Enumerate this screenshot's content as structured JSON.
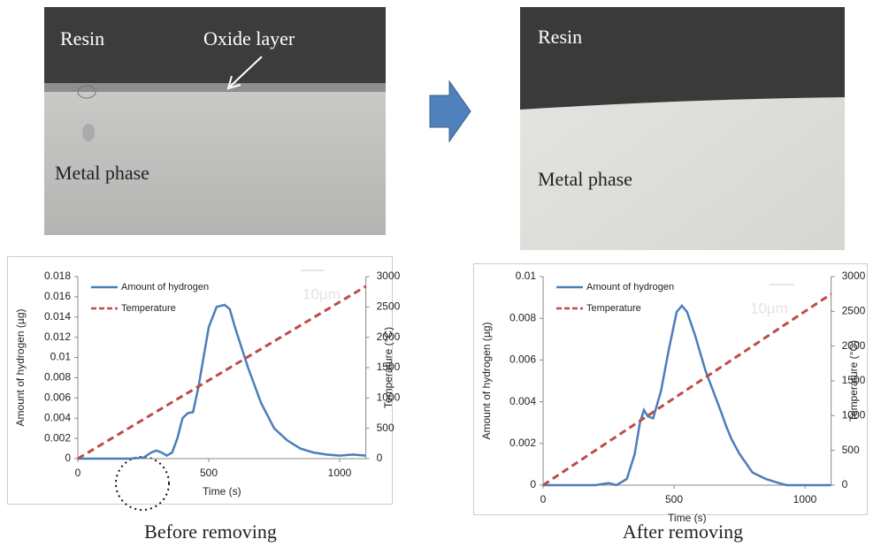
{
  "images": [
    {
      "labels": [
        "Resin",
        "Oxide layer",
        "Metal phase"
      ],
      "scale_bar": "10µm"
    },
    {
      "labels": [
        "Resin",
        "Metal phase"
      ],
      "scale_bar": "10µm"
    }
  ],
  "captions": [
    "Before removing",
    "After removing"
  ],
  "chart_data": [
    {
      "type": "line",
      "x_label": "Time (s)",
      "y_label": "Amount of hydrogen (µg)",
      "y2_label": "Temperature (°C)",
      "xlim": [
        0,
        1100
      ],
      "xticks": [
        0,
        500,
        1000
      ],
      "ylim": [
        0,
        0.018
      ],
      "yticks": [
        0,
        0.002,
        0.004,
        0.006,
        0.008,
        0.01,
        0.012,
        0.014,
        0.016,
        0.018
      ],
      "y2lim": [
        0,
        3000
      ],
      "y2ticks": [
        0,
        500,
        1000,
        1500,
        2000,
        2500,
        3000
      ],
      "legend": "top-left",
      "series": [
        {
          "name": "Amount of hydrogen",
          "color": "#4a7ebb",
          "style": "solid",
          "x": [
            0,
            200,
            250,
            280,
            300,
            320,
            340,
            360,
            380,
            400,
            420,
            440,
            460,
            480,
            500,
            530,
            560,
            580,
            600,
            650,
            700,
            750,
            800,
            850,
            900,
            950,
            1000,
            1050,
            1100
          ],
          "values": [
            0,
            0,
            0.0001,
            0.0006,
            0.0008,
            0.0006,
            0.0003,
            0.0006,
            0.002,
            0.004,
            0.0045,
            0.0046,
            0.007,
            0.01,
            0.013,
            0.015,
            0.0152,
            0.0148,
            0.013,
            0.009,
            0.0055,
            0.003,
            0.0018,
            0.001,
            0.0006,
            0.0004,
            0.0003,
            0.0004,
            0.0003
          ]
        },
        {
          "name": "Temperature",
          "color": "#be4b48",
          "style": "dashed",
          "axis": "y2",
          "x": [
            0,
            1100
          ],
          "values": [
            0,
            2840
          ]
        }
      ]
    },
    {
      "type": "line",
      "x_label": "Time (s)",
      "y_label": "Amount of hydrogen (µg)",
      "y2_label": "Temperature (°C)",
      "xlim": [
        0,
        1100
      ],
      "xticks": [
        0,
        500,
        1000
      ],
      "ylim": [
        0,
        0.01
      ],
      "yticks": [
        0,
        0.002,
        0.004,
        0.006,
        0.008,
        0.01
      ],
      "y2lim": [
        0,
        3000
      ],
      "y2ticks": [
        0,
        500,
        1000,
        1500,
        2000,
        2500,
        3000
      ],
      "legend": "top-left",
      "series": [
        {
          "name": "Amount of hydrogen",
          "color": "#4a7ebb",
          "style": "solid",
          "x": [
            0,
            200,
            250,
            280,
            320,
            350,
            370,
            385,
            400,
            420,
            450,
            480,
            510,
            530,
            550,
            580,
            620,
            650,
            680,
            700,
            720,
            750,
            800,
            850,
            900,
            930,
            1000,
            1100
          ],
          "values": [
            0,
            0,
            0.0001,
            0,
            0.0003,
            0.0015,
            0.003,
            0.0036,
            0.0033,
            0.0032,
            0.0045,
            0.0065,
            0.0083,
            0.0086,
            0.0083,
            0.0072,
            0.0055,
            0.0045,
            0.0035,
            0.0028,
            0.0022,
            0.0015,
            0.0006,
            0.0003,
            0.0001,
            0,
            0,
            0
          ]
        },
        {
          "name": "Temperature",
          "color": "#be4b48",
          "style": "dashed",
          "axis": "y2",
          "x": [
            0,
            1100
          ],
          "values": [
            0,
            2750
          ]
        }
      ]
    }
  ]
}
